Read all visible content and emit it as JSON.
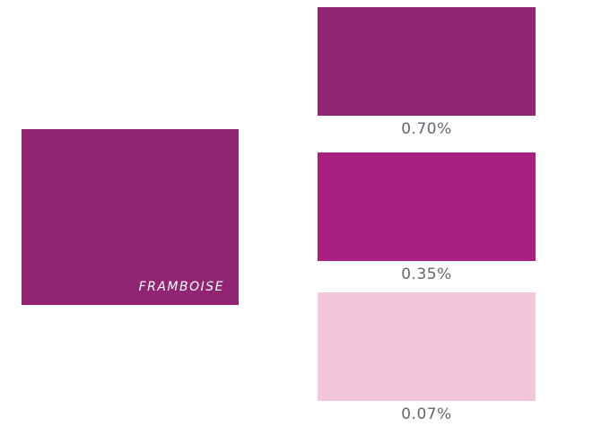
{
  "main": {
    "name": "FRAMBOISE",
    "color": "#922573"
  },
  "shades": [
    {
      "value": "0.70%",
      "color": "#922573"
    },
    {
      "value": "0.35%",
      "color": "#aa2080"
    },
    {
      "value": "0.07%",
      "color": "#f2c7d9"
    }
  ]
}
